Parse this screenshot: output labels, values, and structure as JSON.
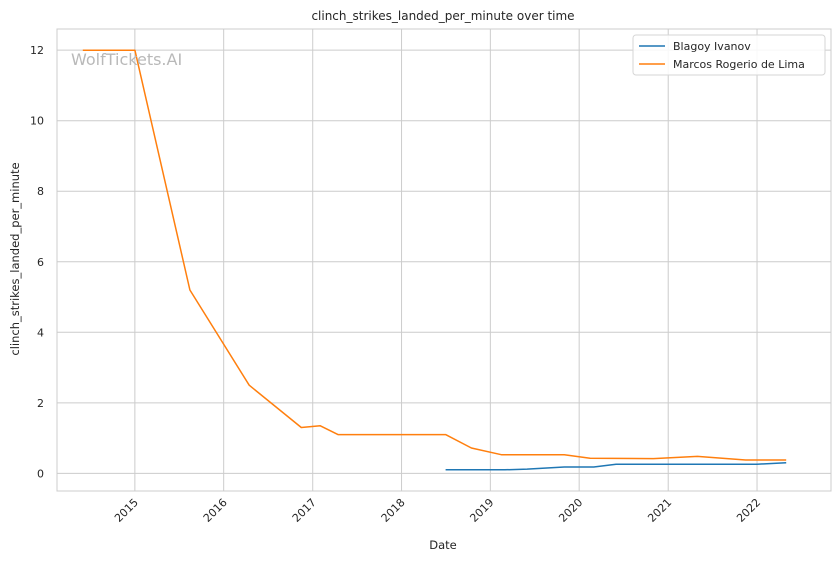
{
  "watermark": "WolfTickets.AI",
  "chart_data": {
    "type": "line",
    "title": "clinch_strikes_landed_per_minute over time",
    "xlabel": "Date",
    "ylabel": "clinch_strikes_landed_per_minute",
    "xlim": [
      "2014-02-15",
      "2022-11-01"
    ],
    "ylim": [
      -0.5,
      12.6
    ],
    "x_ticks": [
      "2015",
      "2016",
      "2017",
      "2018",
      "2019",
      "2020",
      "2021",
      "2022"
    ],
    "y_ticks": [
      0,
      2,
      4,
      6,
      8,
      10,
      12
    ],
    "grid": true,
    "legend_position": "top-right",
    "series": [
      {
        "name": "Blagoy Ivanov",
        "color": "#1f77b4",
        "points": [
          [
            "2018-07-01",
            0.1
          ],
          [
            "2019-03-01",
            0.1
          ],
          [
            "2019-06-01",
            0.12
          ],
          [
            "2019-11-01",
            0.18
          ],
          [
            "2020-03-01",
            0.18
          ],
          [
            "2020-06-01",
            0.26
          ],
          [
            "2021-04-01",
            0.26
          ],
          [
            "2022-01-01",
            0.26
          ],
          [
            "2022-05-01",
            0.3
          ]
        ]
      },
      {
        "name": "Marcos Rogerio de Lima",
        "color": "#ff7f0e",
        "points": [
          [
            "2014-06-01",
            12.0
          ],
          [
            "2015-01-01",
            12.0
          ],
          [
            "2015-08-15",
            5.2
          ],
          [
            "2016-04-15",
            2.5
          ],
          [
            "2016-11-15",
            1.3
          ],
          [
            "2017-02-01",
            1.35
          ],
          [
            "2017-04-15",
            1.1
          ],
          [
            "2018-07-01",
            1.1
          ],
          [
            "2018-10-15",
            0.72
          ],
          [
            "2019-02-15",
            0.53
          ],
          [
            "2019-11-01",
            0.53
          ],
          [
            "2020-02-15",
            0.43
          ],
          [
            "2020-11-01",
            0.42
          ],
          [
            "2021-05-01",
            0.48
          ],
          [
            "2021-11-15",
            0.38
          ],
          [
            "2022-05-01",
            0.38
          ]
        ]
      }
    ]
  }
}
